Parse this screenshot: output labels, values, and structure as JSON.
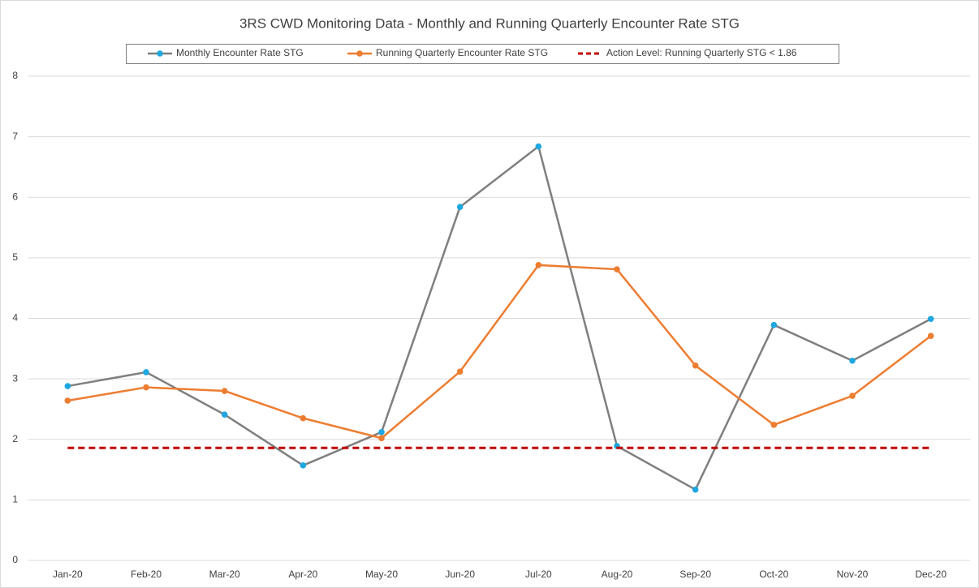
{
  "chart_data": {
    "type": "line",
    "title": "3RS CWD Monitoring Data - Monthly and Running Quarterly Encounter Rate STG",
    "categories": [
      "Jan-20",
      "Feb-20",
      "Mar-20",
      "Apr-20",
      "May-20",
      "Jun-20",
      "Jul-20",
      "Aug-20",
      "Sep-20",
      "Oct-20",
      "Nov-20",
      "Dec-20"
    ],
    "series": [
      {
        "name": "Monthly Encounter Rate STG",
        "color": "#7f7f7f",
        "marker_color": "#1ea7e0",
        "dash": false,
        "values": [
          2.88,
          3.11,
          2.41,
          1.57,
          2.12,
          5.84,
          6.84,
          1.89,
          1.17,
          3.89,
          3.3,
          3.99
        ]
      },
      {
        "name": "Running Quarterly Encounter Rate STG",
        "color": "#ed7d31",
        "marker_color": "#ed7d31",
        "dash": false,
        "values": [
          2.64,
          2.86,
          2.8,
          2.35,
          2.02,
          3.12,
          4.88,
          4.81,
          3.22,
          2.24,
          2.72,
          3.71
        ]
      },
      {
        "name": "Action Level: Running Quarterly STG < 1.86",
        "color": "#c00000",
        "marker_color": null,
        "dash": true,
        "values": [
          1.86,
          1.86,
          1.86,
          1.86,
          1.86,
          1.86,
          1.86,
          1.86,
          1.86,
          1.86,
          1.86,
          1.86
        ]
      }
    ],
    "ylim": [
      0,
      8
    ],
    "yticks": [
      0,
      1,
      2,
      3,
      4,
      5,
      6,
      7,
      8
    ],
    "grid": true,
    "legend": "top"
  }
}
